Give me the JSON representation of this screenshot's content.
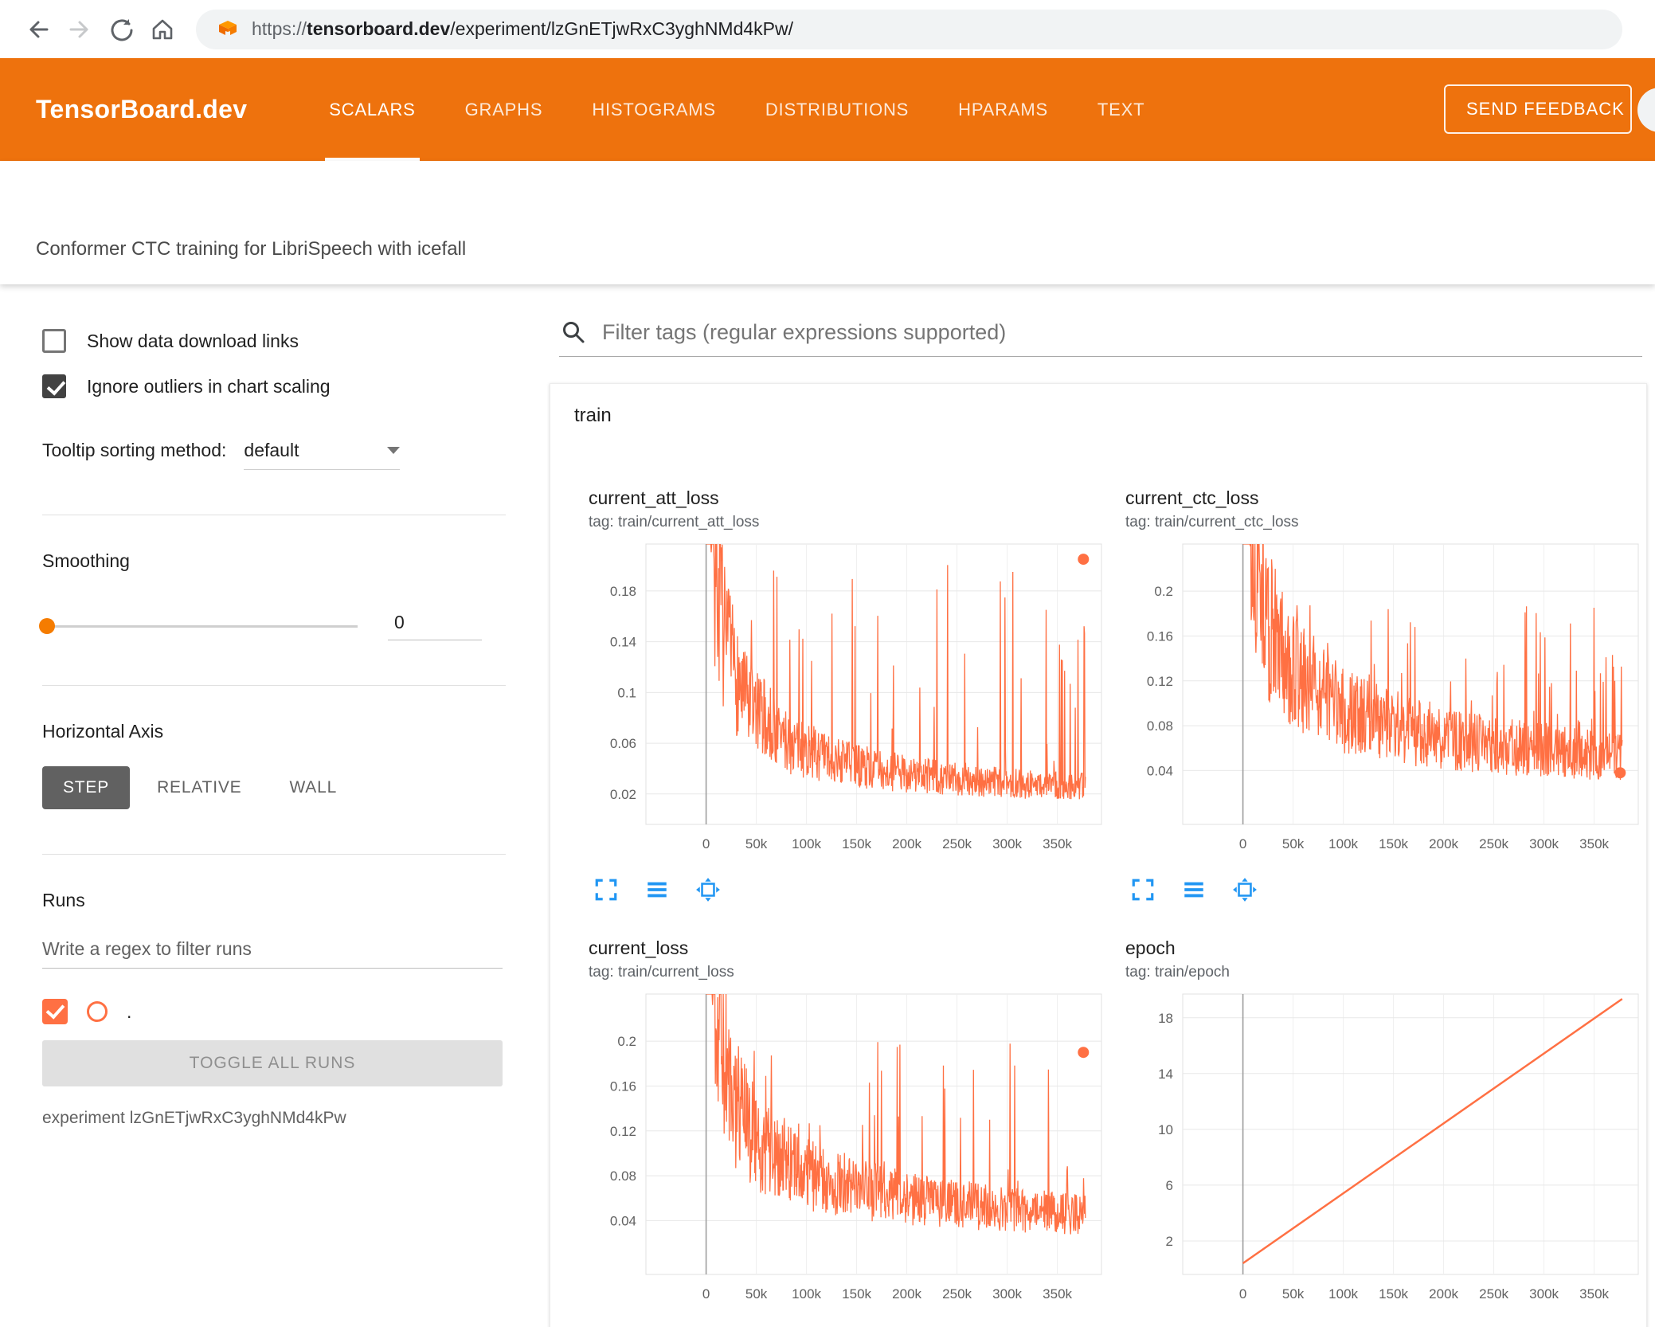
{
  "browser": {
    "url": {
      "scheme": "https://",
      "domain": "tensorboard.dev",
      "path": "/experiment/lzGnETjwRxC3yghNMd4kPw/"
    }
  },
  "header": {
    "brand": "TensorBoard.dev",
    "tabs": [
      {
        "label": "SCALARS",
        "active": true
      },
      {
        "label": "GRAPHS",
        "active": false
      },
      {
        "label": "HISTOGRAMS",
        "active": false
      },
      {
        "label": "DISTRIBUTIONS",
        "active": false
      },
      {
        "label": "HPARAMS",
        "active": false
      },
      {
        "label": "TEXT",
        "active": false
      }
    ],
    "feedback_label": "SEND FEEDBACK"
  },
  "subheader": {
    "title": "Conformer CTC training for LibriSpeech with icefall"
  },
  "sidebar": {
    "show_download": {
      "label": "Show data download links",
      "checked": false
    },
    "ignore_outliers": {
      "label": "Ignore outliers in chart scaling",
      "checked": true
    },
    "tooltip_sorting": {
      "label": "Tooltip sorting method:",
      "value": "default"
    },
    "smoothing": {
      "label": "Smoothing",
      "value": "0"
    },
    "horizontal_axis": {
      "label": "Horizontal Axis",
      "options": [
        "STEP",
        "RELATIVE",
        "WALL"
      ],
      "selected": "STEP"
    },
    "runs": {
      "label": "Runs",
      "filter_placeholder": "Write a regex to filter runs",
      "run_label": ".",
      "run_checked": true,
      "toggle_label": "TOGGLE ALL RUNS",
      "experiment_caption": "experiment lzGnETjwRxC3yghNMd4kPw"
    }
  },
  "main": {
    "filter_placeholder": "Filter tags (regular expressions supported)",
    "group_label": "train"
  },
  "colors": {
    "header": "#ee720d",
    "accent": "#f57c00",
    "series": "#ff7043",
    "icon_blue": "#2196f3"
  },
  "chart_data": [
    {
      "type": "noisy-line",
      "title": "current_att_loss",
      "tag": "tag: train/current_att_loss",
      "series_color": "#ff7043",
      "xlim": [
        -60000,
        394000
      ],
      "ylim": [
        -0.004,
        0.217
      ],
      "xticks": [
        {
          "v": 0,
          "label": "0"
        },
        {
          "v": 50000,
          "label": "50k"
        },
        {
          "v": 100000,
          "label": "100k"
        },
        {
          "v": 150000,
          "label": "150k"
        },
        {
          "v": 200000,
          "label": "200k"
        },
        {
          "v": 250000,
          "label": "250k"
        },
        {
          "v": 300000,
          "label": "300k"
        },
        {
          "v": 350000,
          "label": "350k"
        }
      ],
      "yticks": [
        {
          "v": 0.02,
          "label": "0.02"
        },
        {
          "v": 0.06,
          "label": "0.06"
        },
        {
          "v": 0.1,
          "label": "0.1"
        },
        {
          "v": 0.14,
          "label": "0.14"
        },
        {
          "v": 0.18,
          "label": "0.18"
        }
      ],
      "xrange": [
        0,
        378000
      ],
      "baseline": [
        [
          0,
          0.45
        ],
        [
          8000,
          0.2
        ],
        [
          20000,
          0.13
        ],
        [
          40000,
          0.09
        ],
        [
          80000,
          0.06
        ],
        [
          120000,
          0.047
        ],
        [
          160000,
          0.04
        ],
        [
          200000,
          0.035
        ],
        [
          260000,
          0.03
        ],
        [
          320000,
          0.027
        ],
        [
          378000,
          0.025
        ]
      ],
      "noise": {
        "seed": 7,
        "mult_lo": 0.6,
        "mult_hi": 1.45,
        "spike_prob": 0.08,
        "spike_cap": 0.21
      },
      "samples": 820,
      "end_dot": [
        376000,
        0.205
      ]
    },
    {
      "type": "noisy-line",
      "title": "current_ctc_loss",
      "tag": "tag: train/current_ctc_loss",
      "series_color": "#ff7043",
      "xlim": [
        -60000,
        394000
      ],
      "ylim": [
        -0.008,
        0.242
      ],
      "xticks": [
        {
          "v": 0,
          "label": "0"
        },
        {
          "v": 50000,
          "label": "50k"
        },
        {
          "v": 100000,
          "label": "100k"
        },
        {
          "v": 150000,
          "label": "150k"
        },
        {
          "v": 200000,
          "label": "200k"
        },
        {
          "v": 250000,
          "label": "250k"
        },
        {
          "v": 300000,
          "label": "300k"
        },
        {
          "v": 350000,
          "label": "350k"
        }
      ],
      "yticks": [
        {
          "v": 0.04,
          "label": "0.04"
        },
        {
          "v": 0.08,
          "label": "0.08"
        },
        {
          "v": 0.12,
          "label": "0.12"
        },
        {
          "v": 0.16,
          "label": "0.16"
        },
        {
          "v": 0.2,
          "label": "0.2"
        }
      ],
      "xrange": [
        0,
        378000
      ],
      "baseline": [
        [
          0,
          0.5
        ],
        [
          10000,
          0.25
        ],
        [
          25000,
          0.17
        ],
        [
          50000,
          0.13
        ],
        [
          100000,
          0.095
        ],
        [
          150000,
          0.08
        ],
        [
          200000,
          0.07
        ],
        [
          260000,
          0.062
        ],
        [
          320000,
          0.057
        ],
        [
          378000,
          0.052
        ]
      ],
      "noise": {
        "seed": 13,
        "mult_lo": 0.58,
        "mult_hi": 1.4,
        "spike_prob": 0.075,
        "spike_cap": 0.2
      },
      "samples": 820,
      "end_dot": [
        376000,
        0.038
      ]
    },
    {
      "type": "noisy-line",
      "title": "current_loss",
      "tag": "tag: train/current_loss",
      "series_color": "#ff7043",
      "xlim": [
        -60000,
        394000
      ],
      "ylim": [
        -0.008,
        0.242
      ],
      "xticks": [
        {
          "v": 0,
          "label": "0"
        },
        {
          "v": 50000,
          "label": "50k"
        },
        {
          "v": 100000,
          "label": "100k"
        },
        {
          "v": 150000,
          "label": "150k"
        },
        {
          "v": 200000,
          "label": "200k"
        },
        {
          "v": 250000,
          "label": "250k"
        },
        {
          "v": 300000,
          "label": "300k"
        },
        {
          "v": 350000,
          "label": "350k"
        }
      ],
      "yticks": [
        {
          "v": 0.04,
          "label": "0.04"
        },
        {
          "v": 0.08,
          "label": "0.08"
        },
        {
          "v": 0.12,
          "label": "0.12"
        },
        {
          "v": 0.16,
          "label": "0.16"
        },
        {
          "v": 0.2,
          "label": "0.2"
        }
      ],
      "xrange": [
        0,
        378000
      ],
      "baseline": [
        [
          0,
          0.5
        ],
        [
          10000,
          0.22
        ],
        [
          25000,
          0.15
        ],
        [
          50000,
          0.11
        ],
        [
          100000,
          0.08
        ],
        [
          150000,
          0.068
        ],
        [
          200000,
          0.06
        ],
        [
          260000,
          0.053
        ],
        [
          320000,
          0.048
        ],
        [
          378000,
          0.045
        ]
      ],
      "noise": {
        "seed": 29,
        "mult_lo": 0.6,
        "mult_hi": 1.42,
        "spike_prob": 0.075,
        "spike_cap": 0.2
      },
      "samples": 820,
      "end_dot": [
        376000,
        0.19
      ]
    },
    {
      "type": "line",
      "title": "epoch",
      "tag": "tag: train/epoch",
      "series_color": "#ff7043",
      "xlim": [
        -60000,
        394000
      ],
      "ylim": [
        -0.4,
        19.7
      ],
      "xticks": [
        {
          "v": 0,
          "label": "0"
        },
        {
          "v": 50000,
          "label": "50k"
        },
        {
          "v": 100000,
          "label": "100k"
        },
        {
          "v": 150000,
          "label": "150k"
        },
        {
          "v": 200000,
          "label": "200k"
        },
        {
          "v": 250000,
          "label": "250k"
        },
        {
          "v": 300000,
          "label": "300k"
        },
        {
          "v": 350000,
          "label": "350k"
        }
      ],
      "yticks": [
        {
          "v": 2,
          "label": "2"
        },
        {
          "v": 6,
          "label": "6"
        },
        {
          "v": 10,
          "label": "10"
        },
        {
          "v": 14,
          "label": "14"
        },
        {
          "v": 18,
          "label": "18"
        }
      ],
      "line": [
        [
          0,
          0.4
        ],
        [
          378000,
          19.35
        ]
      ]
    }
  ]
}
